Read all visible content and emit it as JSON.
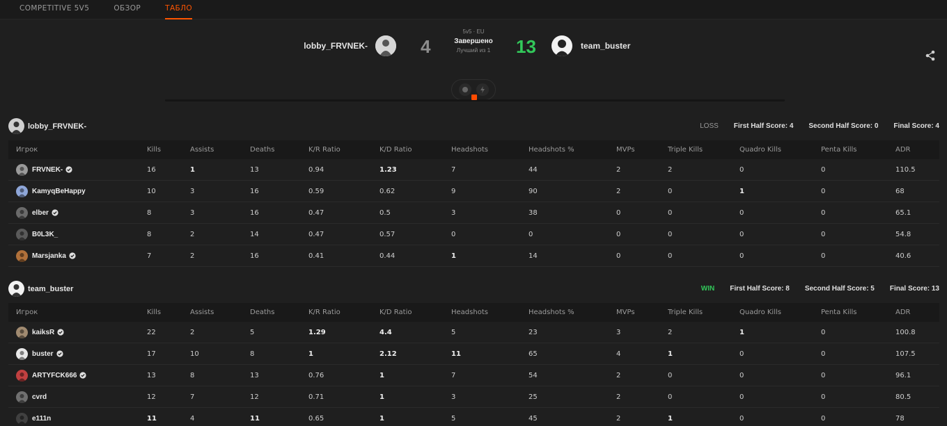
{
  "tabs": [
    {
      "label": "COMPETITIVE 5V5",
      "active": false
    },
    {
      "label": "ОБЗОР",
      "active": false
    },
    {
      "label": "ТАБЛО",
      "active": true
    }
  ],
  "match": {
    "team1": {
      "name": "lobby_FRVNEK-",
      "score": "4"
    },
    "team2": {
      "name": "team_buster",
      "score": "13"
    },
    "mode": "5v5 · EU",
    "status": "Завершено",
    "best_of": "Лучший из 1"
  },
  "columns": [
    "Игрок",
    "Kills",
    "Assists",
    "Deaths",
    "K/R Ratio",
    "K/D Ratio",
    "Headshots",
    "Headshots %",
    "MVPs",
    "Triple Kills",
    "Quadro Kills",
    "Penta Kills",
    "ADR"
  ],
  "teams": [
    {
      "name": "lobby_FRVNEK-",
      "result": "LOSS",
      "first_half": "First Half Score: 4",
      "second_half": "Second Half Score: 0",
      "final": "Final Score: 4",
      "players": [
        {
          "name": "FRVNEK-",
          "verified": true,
          "avatar_color": "#9a9a9a",
          "stats": [
            "16",
            "1",
            "13",
            "0.94",
            "1.23",
            "7",
            "44",
            "2",
            "2",
            "0",
            "0",
            "110.5"
          ]
        },
        {
          "name": "KamyqBeHappy",
          "verified": false,
          "avatar_color": "#8ea6d8",
          "stats": [
            "10",
            "3",
            "16",
            "0.59",
            "0.62",
            "9",
            "90",
            "2",
            "0",
            "1",
            "0",
            "68"
          ]
        },
        {
          "name": "elber",
          "verified": true,
          "avatar_color": "#6a6a6a",
          "stats": [
            "8",
            "3",
            "16",
            "0.47",
            "0.5",
            "3",
            "38",
            "0",
            "0",
            "0",
            "0",
            "65.1"
          ]
        },
        {
          "name": "B0L3K_",
          "verified": false,
          "avatar_color": "#5a5a5a",
          "stats": [
            "8",
            "2",
            "14",
            "0.47",
            "0.57",
            "0",
            "0",
            "0",
            "0",
            "0",
            "0",
            "54.8"
          ]
        },
        {
          "name": "Marsjanka",
          "verified": true,
          "avatar_color": "#b0703a",
          "stats": [
            "7",
            "2",
            "16",
            "0.41",
            "0.44",
            "1",
            "14",
            "0",
            "0",
            "0",
            "0",
            "40.6"
          ]
        }
      ]
    },
    {
      "name": "team_buster",
      "result": "WIN",
      "first_half": "First Half Score: 8",
      "second_half": "Second Half Score: 5",
      "final": "Final Score: 13",
      "players": [
        {
          "name": "kaiksR",
          "verified": true,
          "avatar_color": "#a08a70",
          "stats": [
            "22",
            "2",
            "5",
            "1.29",
            "4.4",
            "5",
            "23",
            "3",
            "2",
            "1",
            "0",
            "100.8"
          ]
        },
        {
          "name": "buster",
          "verified": true,
          "avatar_color": "#e8e8e8",
          "stats": [
            "17",
            "10",
            "8",
            "1",
            "2.12",
            "11",
            "65",
            "4",
            "1",
            "0",
            "0",
            "107.5"
          ]
        },
        {
          "name": "ARTYFCK666",
          "verified": true,
          "avatar_color": "#c04040",
          "stats": [
            "13",
            "8",
            "13",
            "0.76",
            "1",
            "7",
            "54",
            "2",
            "0",
            "0",
            "0",
            "96.1"
          ]
        },
        {
          "name": "cvrd",
          "verified": false,
          "avatar_color": "#707070",
          "stats": [
            "12",
            "7",
            "12",
            "0.71",
            "1",
            "3",
            "25",
            "2",
            "0",
            "0",
            "0",
            "80.5"
          ]
        },
        {
          "name": "e111n",
          "verified": false,
          "avatar_color": "#404040",
          "stats": [
            "11",
            "4",
            "11",
            "0.65",
            "1",
            "5",
            "45",
            "2",
            "1",
            "0",
            "0",
            "78"
          ]
        }
      ]
    }
  ],
  "colors": {
    "accent": "#ff5500",
    "win": "#32c85a",
    "background": "#1f1f1f"
  },
  "icons": {
    "share": "share-icon",
    "verified": "verified-badge-icon"
  }
}
